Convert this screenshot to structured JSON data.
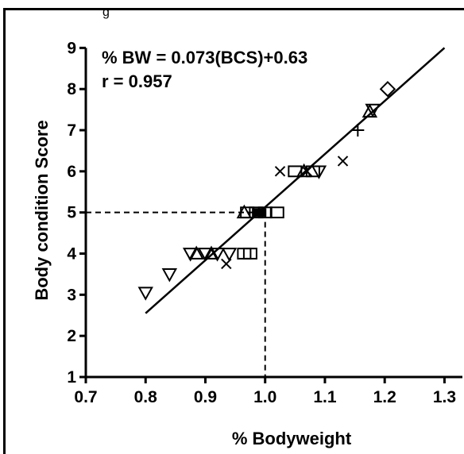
{
  "caption_fragment": "g",
  "chart_data": {
    "type": "scatter",
    "title": "",
    "xlabel": "% Bodyweight",
    "ylabel": "Body condition Score",
    "xlim": [
      0.7,
      1.33
    ],
    "ylim": [
      1,
      9.2
    ],
    "x_ticks": [
      0.7,
      0.8,
      0.9,
      1.0,
      1.1,
      1.2,
      1.3
    ],
    "x_tick_labels": [
      "0.7",
      "0.8",
      "0.9",
      "1.0",
      "1.1",
      "1.2",
      "1.3"
    ],
    "y_ticks": [
      1,
      2,
      3,
      4,
      5,
      6,
      7,
      8,
      9
    ],
    "y_tick_labels": [
      "1",
      "2",
      "3",
      "4",
      "5",
      "6",
      "7",
      "8",
      "9"
    ],
    "grid": false,
    "annotations": [
      "% BW = 0.073(BCS)+0.63",
      "r = 0.957"
    ],
    "regression_line": {
      "x": [
        0.8,
        1.3
      ],
      "y": [
        2.55,
        9.0
      ]
    },
    "reference_lines": {
      "x": 1.0,
      "y": 5
    },
    "series": [
      {
        "marker": "triangle-down",
        "points": [
          [
            0.8,
            3.05
          ],
          [
            0.84,
            3.5
          ],
          [
            0.875,
            4.0
          ],
          [
            0.9,
            4.0
          ],
          [
            0.92,
            4.0
          ],
          [
            0.94,
            4.0
          ],
          [
            1.09,
            6.0
          ],
          [
            1.18,
            7.5
          ]
        ]
      },
      {
        "marker": "triangle-up",
        "points": [
          [
            0.885,
            4.0
          ],
          [
            0.91,
            4.0
          ],
          [
            0.965,
            5.0
          ],
          [
            1.065,
            6.0
          ],
          [
            1.175,
            7.45
          ]
        ]
      },
      {
        "marker": "square",
        "points": [
          [
            0.965,
            4.0
          ],
          [
            0.975,
            4.0
          ],
          [
            0.97,
            5.0
          ],
          [
            0.985,
            5.0
          ],
          [
            1.0,
            5.0
          ],
          [
            1.02,
            5.0
          ],
          [
            1.05,
            6.0
          ],
          [
            1.08,
            6.0
          ]
        ]
      },
      {
        "marker": "x",
        "points": [
          [
            0.935,
            3.75
          ],
          [
            1.025,
            6.0
          ],
          [
            1.07,
            6.0
          ],
          [
            1.13,
            6.25
          ]
        ]
      },
      {
        "marker": "plus",
        "points": [
          [
            1.155,
            7.0
          ]
        ]
      },
      {
        "marker": "diamond",
        "points": [
          [
            1.205,
            8.0
          ]
        ]
      },
      {
        "marker": "filled-square",
        "points": [
          [
            0.985,
            5.0
          ],
          [
            0.995,
            5.0
          ]
        ]
      }
    ]
  }
}
